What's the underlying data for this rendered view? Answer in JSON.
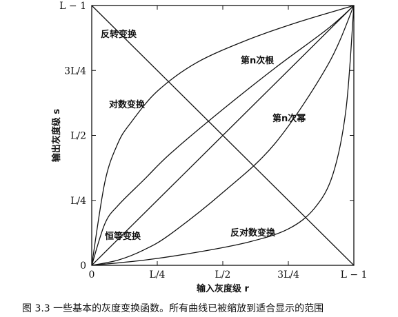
{
  "chart_data": {
    "type": "line",
    "title": "",
    "xlabel": "输入灰度级 r",
    "ylabel": "输出灰度级 s",
    "x_ticks": [
      "0",
      "L/4",
      "L/2",
      "3L/4",
      "L − 1"
    ],
    "y_ticks": [
      "0",
      "L/4",
      "L/2",
      "3L/4",
      "L − 1"
    ],
    "xlim": [
      0,
      1
    ],
    "ylim": [
      0,
      1
    ],
    "grid": false,
    "series": [
      {
        "name": "反转变换",
        "x": [
          0,
          1
        ],
        "y": [
          1,
          0
        ]
      },
      {
        "name": "恒等变换",
        "x": [
          0,
          1
        ],
        "y": [
          0,
          1
        ]
      },
      {
        "name": "对数变换",
        "x": [
          0,
          0.05,
          0.1,
          0.15,
          0.25,
          0.4,
          0.6,
          0.8,
          1.0
        ],
        "y": [
          0,
          0.32,
          0.47,
          0.55,
          0.67,
          0.78,
          0.87,
          0.94,
          1.0
        ]
      },
      {
        "name": "第n次根",
        "x": [
          0,
          0.05,
          0.1,
          0.2,
          0.3,
          0.5,
          0.7,
          0.9,
          1.0
        ],
        "y": [
          0,
          0.16,
          0.23,
          0.33,
          0.43,
          0.6,
          0.76,
          0.91,
          1.0
        ]
      },
      {
        "name": "第n次幂",
        "x": [
          0,
          0.1,
          0.2,
          0.3,
          0.5,
          0.7,
          0.9,
          1.0
        ],
        "y": [
          0,
          0.02,
          0.06,
          0.12,
          0.28,
          0.47,
          0.77,
          1.0
        ]
      },
      {
        "name": "反对数变换",
        "x": [
          0,
          0.2,
          0.4,
          0.6,
          0.75,
          0.85,
          0.92,
          0.97,
          1.0
        ],
        "y": [
          0,
          0.02,
          0.05,
          0.09,
          0.14,
          0.22,
          0.35,
          0.6,
          1.0
        ]
      }
    ]
  },
  "caption": "图 3.3   一些基本的灰度变换函数。所有曲线已被缩放到适合显示的范围"
}
